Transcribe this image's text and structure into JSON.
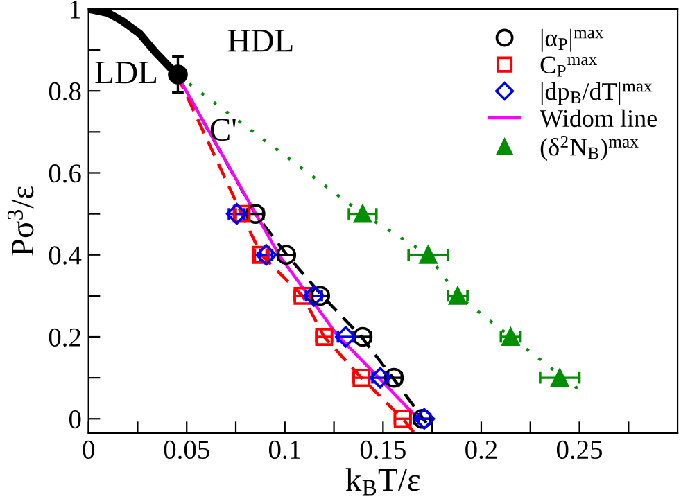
{
  "chart_data": {
    "type": "scatter",
    "xlabel": "k$_{B}$T/ε",
    "ylabel": "Pσ$^{3}$/ε",
    "xlim": [
      0,
      0.3
    ],
    "ylim": [
      -0.035,
      1
    ],
    "xticks": [
      0,
      {
        "value": 0.025,
        "label": null
      },
      0.05,
      {
        "value": 0.075,
        "label": null
      },
      0.1,
      {
        "value": 0.125,
        "label": null
      },
      0.15,
      {
        "value": 0.175,
        "label": null
      },
      0.2,
      {
        "value": 0.225,
        "label": null
      },
      0.25,
      {
        "value": 0.275,
        "label": null
      }
    ],
    "yticks": [
      0,
      {
        "value": 0.1,
        "label": null
      },
      0.2,
      {
        "value": 0.3,
        "label": null
      },
      0.4,
      {
        "value": 0.5,
        "label": null
      },
      0.6,
      {
        "value": 0.7,
        "label": null
      },
      0.8,
      {
        "value": 0.9,
        "label": null
      },
      1
    ],
    "grid": false,
    "legend": "top right",
    "series": [
      {
        "type": "line",
        "color": "#000000",
        "line_style": "solid",
        "x": [
          0,
          0.01,
          0.0174,
          0.026,
          0.034,
          0.04,
          0.045
        ],
        "values": [
          1,
          0.99,
          0.97,
          0.94,
          0.895,
          0.865,
          0.84
        ]
      },
      {
        "type": "line",
        "color": "#000000",
        "line_style": "dashed",
        "x": [
          0.045,
          0.085,
          0.101,
          0.119,
          0.139,
          0.155,
          0.172
        ],
        "values": [
          0.84,
          0.5,
          0.4,
          0.3,
          0.2,
          0.1,
          -0.01
        ]
      },
      {
        "type": "line",
        "color": "#ff0000",
        "line_style": "dashed",
        "x": [
          0.045,
          0.078,
          0.088,
          0.109,
          0.12,
          0.139,
          0.16,
          0.166
        ],
        "values": [
          0.84,
          0.5,
          0.4,
          0.3,
          0.2,
          0.1,
          0,
          -0.035
        ]
      },
      {
        "type": "line",
        "color": "#008f00",
        "line_style": "dotted",
        "x": [
          0.045,
          0.1396,
          0.173,
          0.188,
          0.215,
          0.249
        ],
        "values": [
          0.84,
          0.5,
          0.4,
          0.3,
          0.2,
          0.074
        ]
      },
      {
        "name": "|α$_{P}$|$^{max}$",
        "color": "#000000",
        "marker": "circle",
        "x": [
          0.085,
          0.1007,
          0.118,
          0.1396,
          0.1555,
          0.17
        ],
        "values": [
          0.5,
          0.4,
          0.3,
          0.2,
          0.1,
          0
        ],
        "xerrors": [
          0.004,
          0.004,
          0.004,
          0.004,
          0.004,
          0.004
        ]
      },
      {
        "name": "C$_{P}$$^{max}$",
        "color": "#ff0000",
        "marker": "square",
        "x": [
          0.078,
          0.0877,
          0.109,
          0.12,
          0.139,
          0.16
        ],
        "values": [
          0.5,
          0.4,
          0.3,
          0.2,
          0.1,
          0
        ],
        "xerrors": [
          0.003,
          0.003,
          0.004,
          0.004,
          0.004,
          0.004
        ]
      },
      {
        "name": "|dp$_{B}$/dT|$^{max}$",
        "color": "#0000ff",
        "marker": "diamond",
        "x": [
          0.0755,
          0.0905,
          0.1148,
          0.131,
          0.1486,
          0.171
        ],
        "values": [
          0.5,
          0.4,
          0.3,
          0.2,
          0.1,
          0
        ],
        "xerrors": [
          0.004,
          0.003,
          0.004,
          0.004,
          0.004,
          0.003
        ]
      },
      {
        "type": "line",
        "name": "Widom line",
        "color": "#ff00ff",
        "line_style": "solid",
        "x": [
          0.045,
          0.097,
          0.1264,
          0.168
        ],
        "values": [
          0.84,
          0.4,
          0.206,
          0
        ]
      },
      {
        "name": "(δ$^{2}$N$_{B}$)$^{max}$",
        "color": "#008f00",
        "marker": "triangle",
        "x": [
          0.1396,
          0.173,
          0.188,
          0.215,
          0.24
        ],
        "values": [
          0.5,
          0.4,
          0.3,
          0.2,
          0.1
        ],
        "xerrors": [
          0.007,
          0.01,
          0.005,
          0.005,
          0.01
        ]
      },
      {
        "color": "#000000",
        "marker": "circle",
        "x": [
          0.0455
        ],
        "values": [
          0.84
        ],
        "errors": [
          0.044
        ]
      }
    ],
    "annotations": [
      "HDL",
      "LDL",
      "C'"
    ]
  }
}
